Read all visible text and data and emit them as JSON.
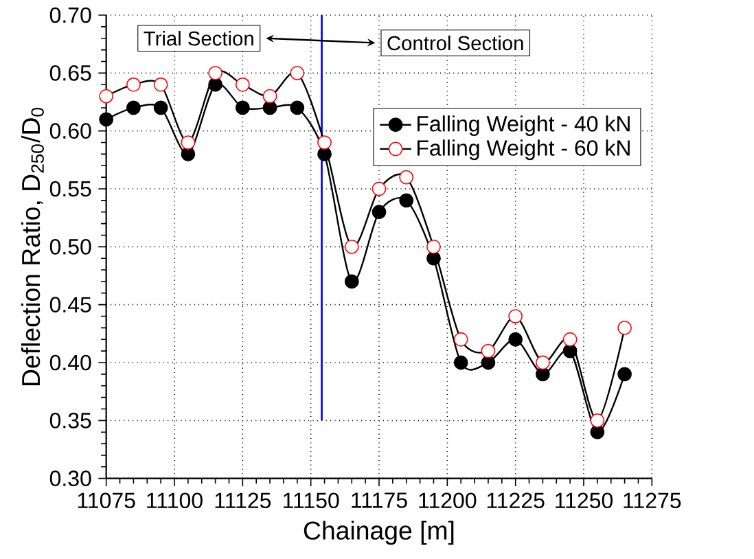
{
  "chart_data": {
    "type": "line",
    "xlabel": "Chainage [m]",
    "ylabel": "Deflection Ratio, D$_{250}$/D$_{0}$",
    "x": [
      11075,
      11085,
      11095,
      11105,
      11115,
      11125,
      11135,
      11145,
      11155,
      11165,
      11175,
      11185,
      11195,
      11205,
      11215,
      11225,
      11235,
      11245,
      11255,
      11265
    ],
    "series": [
      {
        "name": "Falling Weight - 40 kN",
        "color": "#000000",
        "marker": "circle",
        "values": [
          0.61,
          0.62,
          0.62,
          0.58,
          0.64,
          0.62,
          0.62,
          0.62,
          0.58,
          0.47,
          0.53,
          0.54,
          0.49,
          0.4,
          0.4,
          0.42,
          0.39,
          0.41,
          0.34,
          0.39
        ]
      },
      {
        "name": "Falling Weight - 60 kN",
        "color": "#ff0000",
        "marker": "circle",
        "values": [
          0.63,
          0.64,
          0.64,
          0.59,
          0.65,
          0.64,
          0.63,
          0.65,
          0.59,
          0.5,
          0.55,
          0.56,
          0.5,
          0.42,
          0.41,
          0.44,
          0.4,
          0.42,
          0.35,
          0.43
        ]
      }
    ],
    "xlim": [
      11075,
      11275
    ],
    "xticks": [
      11075,
      11100,
      11125,
      11150,
      11175,
      11200,
      11225,
      11250,
      11275
    ],
    "ylim": [
      0.3,
      0.7
    ],
    "yticks": [
      {
        "value": 0.3,
        "label": "0.30"
      },
      {
        "value": 0.35,
        "label": "0.35"
      },
      {
        "value": 0.4,
        "label": "0.40"
      },
      {
        "value": 0.45,
        "label": "0.45"
      },
      {
        "value": 0.5,
        "label": "0.50"
      },
      {
        "value": 0.55,
        "label": "0.55"
      },
      {
        "value": 0.6,
        "label": "0.60"
      },
      {
        "value": 0.65,
        "label": "0.65"
      },
      {
        "value": 0.7,
        "label": "0.70"
      }
    ],
    "ref_lines": [
      {
        "axis": "x",
        "value": 11154,
        "color": "#0000ff"
      }
    ],
    "annotations": [
      "Trial Section",
      "Control Section"
    ],
    "grid": true,
    "legend": "top right",
    "line_style": "solid"
  }
}
